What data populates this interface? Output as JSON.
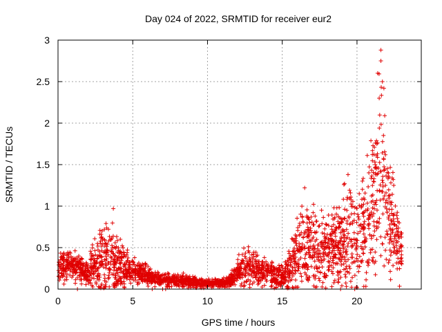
{
  "chart_data": {
    "type": "scatter",
    "title": "Day 024 of 2022, SRMTID for receiver eur2",
    "xlabel": "GPS time / hours",
    "ylabel": "SRMTID / TECUs",
    "xlim": [
      0,
      24.3
    ],
    "ylim": [
      0,
      3
    ],
    "xticks": [
      "0",
      "5",
      "10",
      "15",
      "20"
    ],
    "yticks": [
      "0",
      "0.5",
      "1",
      "1.5",
      "2",
      "2.5",
      "3"
    ],
    "grid": true,
    "marker": "+",
    "color": "#e00000",
    "envelope": {
      "x": [
        0,
        0.5,
        1,
        1.5,
        2,
        2.5,
        3,
        3.5,
        4,
        4.5,
        5,
        5.5,
        6,
        6.5,
        7,
        7.5,
        8,
        8.5,
        9,
        9.5,
        10,
        10.5,
        11,
        11.5,
        12,
        12.5,
        13,
        13.5,
        14,
        14.5,
        15,
        15.5,
        16,
        16.5,
        17,
        17.5,
        18,
        18.5,
        19,
        19.5,
        20,
        20.5,
        21,
        21.3,
        21.6,
        21.9,
        22.2,
        22.5,
        22.8,
        23
      ],
      "center": [
        0.25,
        0.3,
        0.28,
        0.25,
        0.2,
        0.3,
        0.4,
        0.35,
        0.3,
        0.25,
        0.22,
        0.2,
        0.16,
        0.13,
        0.12,
        0.11,
        0.11,
        0.1,
        0.08,
        0.07,
        0.07,
        0.07,
        0.07,
        0.1,
        0.2,
        0.3,
        0.25,
        0.2,
        0.2,
        0.15,
        0.15,
        0.25,
        0.45,
        0.5,
        0.45,
        0.4,
        0.45,
        0.5,
        0.55,
        0.7,
        0.55,
        0.7,
        0.9,
        1.2,
        1.6,
        1.2,
        0.8,
        0.7,
        0.5,
        0.4
      ],
      "spread": [
        0.12,
        0.15,
        0.15,
        0.12,
        0.12,
        0.25,
        0.3,
        0.3,
        0.25,
        0.15,
        0.12,
        0.1,
        0.08,
        0.06,
        0.06,
        0.06,
        0.06,
        0.05,
        0.05,
        0.04,
        0.04,
        0.04,
        0.04,
        0.05,
        0.12,
        0.2,
        0.15,
        0.12,
        0.12,
        0.1,
        0.1,
        0.2,
        0.35,
        0.4,
        0.35,
        0.3,
        0.35,
        0.35,
        0.4,
        0.5,
        0.4,
        0.5,
        0.6,
        0.7,
        0.9,
        0.6,
        0.5,
        0.4,
        0.25,
        0.2
      ]
    },
    "peaks": [
      {
        "x": 3.7,
        "y": 0.97
      },
      {
        "x": 16.5,
        "y": 1.22
      },
      {
        "x": 19.4,
        "y": 1.38
      },
      {
        "x": 21.6,
        "y": 2.88
      },
      {
        "x": 21.6,
        "y": 2.75
      },
      {
        "x": 21.7,
        "y": 2.5
      },
      {
        "x": 21.8,
        "y": 2.42
      }
    ],
    "n_points": 2600
  }
}
